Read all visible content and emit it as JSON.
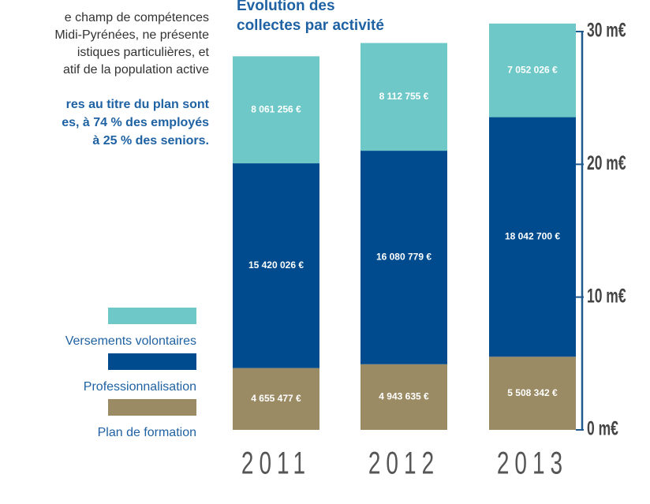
{
  "text_fragments": [
    "e champ de compétences",
    "Midi-Pyrénées, ne présente",
    "istiques particulières, et",
    "atif de la population active"
  ],
  "bold_fragments": [
    "res au titre du plan sont",
    "es, à 74 % des employés",
    "à 25 % des seniors."
  ],
  "chart_data": {
    "type": "stacked_bar",
    "title": [
      "Évolution des",
      "collectes par activité"
    ],
    "categories": [
      "2011",
      "2012",
      "2013"
    ],
    "series": [
      {
        "name": "Plan de formation",
        "color": "#9b8b64",
        "values": [
          4655477,
          4943635,
          5508342
        ],
        "value_labels": [
          "4 655 477 €",
          "4 943 635 €",
          "5 508 342 €"
        ]
      },
      {
        "name": "Professionnalisation",
        "color": "#004b8d",
        "values": [
          15420026,
          16080779,
          18042700
        ],
        "value_labels": [
          "15 420 026 €",
          "16 080 779 €",
          "18 042 700 €"
        ]
      },
      {
        "name": "Versements volontaires",
        "color": "#6fc8c8",
        "values": [
          8061256,
          8112755,
          7052026
        ],
        "value_labels": [
          "8 061 256 €",
          "8 112 755 €",
          "7 052 026 €"
        ]
      }
    ],
    "ylim": [
      0,
      30000000
    ],
    "yticks": [
      {
        "value": 0,
        "label": "0 m€"
      },
      {
        "value": 10000000,
        "label": "10 m€"
      },
      {
        "value": 20000000,
        "label": "20 m€"
      },
      {
        "value": 30000000,
        "label": "30 m€"
      }
    ]
  }
}
